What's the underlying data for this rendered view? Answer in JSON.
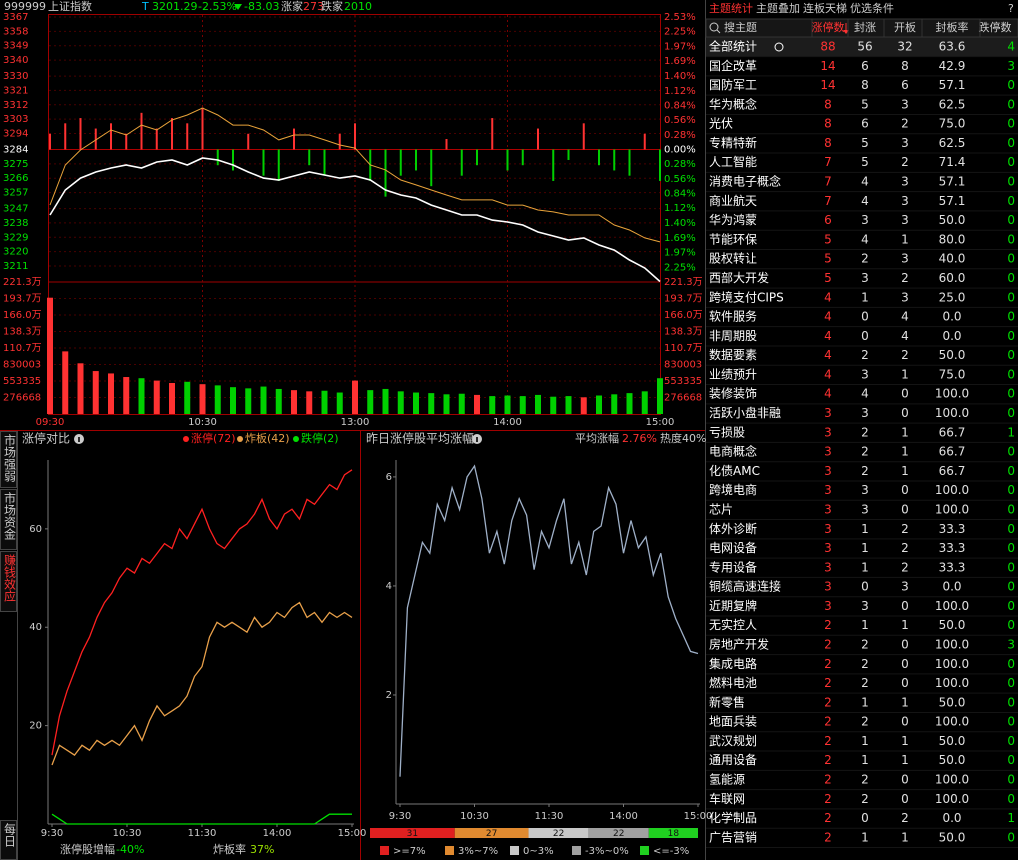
{
  "header": {
    "code": "999999",
    "name": "上证指数",
    "flag": "T",
    "price": 3201.29,
    "change_pct": "-2.53%",
    "change": -83.03,
    "up_label": "涨家",
    "up_count": 273,
    "down_label": "跌家",
    "down_count": 2010
  },
  "index_chart": {
    "type": "line",
    "x": [
      0,
      6,
      12,
      18,
      24,
      30,
      36,
      42,
      48,
      54,
      60,
      66,
      72,
      78,
      84,
      90,
      96,
      102,
      108,
      114,
      120,
      126,
      132,
      138,
      144,
      150,
      156,
      162,
      168,
      174,
      180,
      186,
      192,
      198,
      204,
      210,
      216,
      222,
      228,
      234,
      240
    ],
    "xlim": [
      0,
      240
    ],
    "xticks": [
      {
        "value": 0,
        "label": "09:30"
      },
      {
        "value": 60,
        "label": "10:30"
      },
      {
        "value": 120,
        "label": "13:00"
      },
      {
        "value": 180,
        "label": "14:00"
      },
      {
        "value": 240,
        "label": "15:00"
      }
    ],
    "ylim": [
      3201,
      3367
    ],
    "yticks": [
      3367,
      3358,
      3349,
      3340,
      3330,
      3321,
      3312,
      3303,
      3294,
      3284,
      3275,
      3266,
      3257,
      3247,
      3238,
      3229,
      3220,
      3211
    ],
    "y2lim": [
      -2.53,
      2.53
    ],
    "y2ticks": [
      {
        "value": 2.53,
        "label": "2.53%"
      },
      {
        "value": 2.25,
        "label": "2.25%"
      },
      {
        "value": 1.97,
        "label": "1.97%"
      },
      {
        "value": 1.69,
        "label": "1.69%"
      },
      {
        "value": 1.4,
        "label": "1.40%"
      },
      {
        "value": 1.12,
        "label": "1.12%"
      },
      {
        "value": 0.84,
        "label": "0.84%"
      },
      {
        "value": 0.56,
        "label": "0.56%"
      },
      {
        "value": 0.28,
        "label": "0.28%"
      },
      {
        "value": 0,
        "label": "0.00%"
      },
      {
        "value": -0.28,
        "label": "0.28%"
      },
      {
        "value": -0.56,
        "label": "0.56%"
      },
      {
        "value": -0.84,
        "label": "0.84%"
      },
      {
        "value": -1.12,
        "label": "1.12%"
      },
      {
        "value": -1.4,
        "label": "1.40%"
      },
      {
        "value": -1.69,
        "label": "1.69%"
      },
      {
        "value": -1.97,
        "label": "1.97%"
      },
      {
        "value": -2.25,
        "label": "2.25%"
      }
    ],
    "series": [
      {
        "color": "#ffffff",
        "values": [
          3243.0,
          3258.6,
          3266.1,
          3269.9,
          3272.4,
          3274.3,
          3272.4,
          3276.2,
          3277.4,
          3274.3,
          3278.7,
          3277.4,
          3274.3,
          3269.9,
          3266.1,
          3264.9,
          3267.4,
          3269.9,
          3268.0,
          3266.1,
          3267.4,
          3264.9,
          3258.6,
          3255.5,
          3253.6,
          3249.2,
          3246.1,
          3243.0,
          3243.0,
          3239.8,
          3238.6,
          3236.7,
          3232.3,
          3229.8,
          3227.3,
          3228.6,
          3224.2,
          3221.0,
          3214.8,
          3209.8,
          3201.3
        ]
      },
      {
        "color": "#e8a33a",
        "values": [
          3249.2,
          3274.3,
          3283.7,
          3290.0,
          3296.2,
          3293.1,
          3299.3,
          3296.2,
          3302.5,
          3305.6,
          3310.0,
          3305.6,
          3299.3,
          3299.3,
          3296.2,
          3290.0,
          3293.1,
          3293.1,
          3290.0,
          3286.8,
          3284.9,
          3274.3,
          3271.2,
          3264.9,
          3261.8,
          3258.6,
          3255.5,
          3252.4,
          3252.4,
          3252.4,
          3249.2,
          3249.2,
          3246.1,
          3244.9,
          3243.0,
          3243.0,
          3243.0,
          3236.7,
          3233.6,
          3228.6,
          3226.1
        ]
      }
    ],
    "strength": {
      "axis": "y2",
      "up_color": "#ff3232",
      "down_color": "#00d000",
      "values": [
        0.3,
        0.5,
        0.6,
        0.4,
        0.5,
        0.3,
        0.7,
        0.4,
        0.6,
        0.5,
        0.8,
        -0.3,
        -0.4,
        0.3,
        -0.5,
        -0.6,
        0.4,
        -0.3,
        -0.5,
        0.3,
        0.5,
        -0.6,
        -0.9,
        -0.5,
        -0.4,
        -0.7,
        0.2,
        -0.5,
        -0.3,
        0.6,
        -0.4,
        -0.3,
        0.4,
        -0.6,
        -0.2,
        0.5,
        -0.3,
        -0.4,
        -0.5,
        0.3,
        -0.6
      ]
    },
    "volume": {
      "ylim": [
        0,
        2213344
      ],
      "up_color": "#ff3232",
      "down_color": "#00d000",
      "yticks": [
        {
          "value": 2213344,
          "label": "221.3万"
        },
        {
          "value": 1936676,
          "label": "193.7万"
        },
        {
          "value": 1660008,
          "label": "166.0万"
        },
        {
          "value": 1383340,
          "label": "138.3万"
        },
        {
          "value": 1106672,
          "label": "110.7万"
        },
        830003,
        553335,
        276668
      ],
      "values": [
        1950000,
        1050000,
        850000,
        720000,
        680000,
        620000,
        600000,
        560000,
        520000,
        540000,
        500000,
        480000,
        450000,
        430000,
        460000,
        420000,
        400000,
        380000,
        390000,
        360000,
        560000,
        400000,
        420000,
        380000,
        360000,
        350000,
        330000,
        340000,
        320000,
        300000,
        310000,
        300000,
        320000,
        290000,
        300000,
        280000,
        310000,
        330000,
        350000,
        380000,
        600000
      ]
    }
  },
  "side_tabs": {
    "items": [
      "市场强弱",
      "市场资金",
      "赚钱效应",
      "每日"
    ],
    "active": 2
  },
  "limit_chart": {
    "type": "line",
    "title": "涨停对比",
    "x": [
      0,
      6,
      12,
      18,
      24,
      30,
      36,
      42,
      48,
      54,
      60,
      66,
      72,
      78,
      84,
      90,
      96,
      102,
      108,
      114,
      120,
      126,
      132,
      138,
      144,
      150,
      156,
      162,
      168,
      174,
      180,
      186,
      192,
      198,
      204,
      210,
      216,
      222,
      228,
      234,
      240
    ],
    "xlim": [
      0,
      240
    ],
    "xticks": [
      {
        "value": 0,
        "label": "9:30"
      },
      {
        "value": 60,
        "label": "10:30"
      },
      {
        "value": 120,
        "label": "11:30"
      },
      {
        "value": 180,
        "label": "14:00"
      },
      {
        "value": 240,
        "label": "15:00"
      }
    ],
    "ylim": [
      0,
      74
    ],
    "yticks": [
      20,
      40,
      60
    ],
    "series": [
      {
        "name": "涨停(72)",
        "color": "#ff2020",
        "values": [
          14,
          22,
          27,
          31,
          35,
          38,
          42,
          45,
          47,
          50,
          52,
          51,
          54,
          53,
          55,
          57,
          56,
          60,
          58,
          61,
          64,
          60,
          57,
          56,
          58,
          60,
          61,
          63,
          66,
          62,
          60,
          63,
          64,
          62,
          66,
          65,
          67,
          69,
          68,
          71,
          72
        ]
      },
      {
        "name": "炸板(42)",
        "color": "#e8a04a",
        "values": [
          12,
          16,
          15,
          14,
          16,
          15,
          17,
          16,
          17,
          16,
          18,
          20,
          17,
          21,
          24,
          22,
          23,
          24,
          26,
          30,
          32,
          38,
          41,
          40,
          41,
          40,
          39,
          42,
          40,
          41,
          43,
          42,
          44,
          45,
          42,
          43,
          41,
          43,
          42,
          43,
          42
        ]
      },
      {
        "name": "跌停(2)",
        "color": "#00e000",
        "values": [
          2,
          1,
          0,
          0,
          0,
          0,
          0,
          0,
          0,
          0,
          0,
          0,
          0,
          0,
          0,
          0,
          0,
          0,
          0,
          0,
          0,
          0,
          0,
          0,
          0,
          0,
          0,
          0,
          0,
          0,
          0,
          0,
          0,
          0,
          0,
          0,
          1,
          2,
          2,
          2,
          2
        ]
      }
    ],
    "footer": [
      {
        "label": "涨停股增幅",
        "value": "-40%",
        "color": "#00e000"
      },
      {
        "label": "炸板率",
        "value": "37%",
        "color": "#9be000"
      }
    ]
  },
  "avg_chart": {
    "type": "line",
    "title": "昨日涨停股平均涨幅",
    "avg_label": "平均涨幅",
    "avg_value": "2.76%",
    "heat": "热度40%",
    "x": [
      0,
      6,
      12,
      18,
      24,
      30,
      36,
      42,
      48,
      54,
      60,
      66,
      72,
      78,
      84,
      90,
      96,
      102,
      108,
      114,
      120,
      126,
      132,
      138,
      144,
      150,
      156,
      162,
      168,
      174,
      180,
      186,
      192,
      198,
      204,
      210,
      216,
      222,
      228,
      234,
      240
    ],
    "xlim": [
      0,
      240
    ],
    "xticks": [
      {
        "value": 0,
        "label": "9:30"
      },
      {
        "value": 60,
        "label": "10:30"
      },
      {
        "value": 120,
        "label": "11:30"
      },
      {
        "value": 180,
        "label": "14:00"
      },
      {
        "value": 240,
        "label": "15:00"
      }
    ],
    "ylim": [
      0,
      6.31
    ],
    "yticks": [
      2,
      4,
      6
    ],
    "series": [
      {
        "color": "#9fb0c8",
        "values": [
          0.5,
          3.6,
          4.2,
          4.8,
          4.6,
          5.5,
          5.2,
          5.8,
          5.4,
          6.0,
          6.2,
          5.6,
          4.6,
          5.0,
          4.4,
          5.2,
          5.6,
          5.3,
          4.3,
          5.0,
          4.7,
          5.2,
          5.6,
          4.4,
          4.8,
          4.2,
          5.0,
          5.1,
          5.8,
          5.5,
          4.6,
          5.2,
          4.7,
          4.9,
          4.2,
          4.6,
          3.8,
          3.4,
          3.1,
          2.8,
          2.76
        ]
      }
    ],
    "distribution": {
      "values": [
        31,
        27,
        22,
        22,
        18
      ],
      "labels": [
        ">=7%",
        "3%~7%",
        "0~3%",
        "-3%~0%",
        "<=-3%"
      ],
      "colors": [
        "#e02020",
        "#e08a30",
        "#c8c8c8",
        "#a0a0a0",
        "#20d020"
      ]
    }
  },
  "theme_table": {
    "tabs": [
      "主题统计",
      "主题叠加",
      "连板天梯",
      "优选条件",
      "?"
    ],
    "active_tab": 0,
    "search": "搜主题",
    "columns": [
      "涨停数",
      "封涨",
      "开板",
      "封板率",
      "跌停数"
    ],
    "rows": [
      [
        "全部统计",
        88,
        56,
        32,
        "63.6",
        4
      ],
      [
        "国企改革",
        14,
        6,
        8,
        "42.9",
        3
      ],
      [
        "国防军工",
        14,
        8,
        6,
        "57.1",
        0
      ],
      [
        "华为概念",
        8,
        5,
        3,
        "62.5",
        0
      ],
      [
        "光伏",
        8,
        6,
        2,
        "75.0",
        0
      ],
      [
        "专精特新",
        8,
        5,
        3,
        "62.5",
        0
      ],
      [
        "人工智能",
        7,
        5,
        2,
        "71.4",
        0
      ],
      [
        "消费电子概念",
        7,
        4,
        3,
        "57.1",
        0
      ],
      [
        "商业航天",
        7,
        4,
        3,
        "57.1",
        0
      ],
      [
        "华为鸿蒙",
        6,
        3,
        3,
        "50.0",
        0
      ],
      [
        "节能环保",
        5,
        4,
        1,
        "80.0",
        0
      ],
      [
        "股权转让",
        5,
        2,
        3,
        "40.0",
        0
      ],
      [
        "西部大开发",
        5,
        3,
        2,
        "60.0",
        0
      ],
      [
        "跨境支付CIPS",
        4,
        1,
        3,
        "25.0",
        0
      ],
      [
        "软件服务",
        4,
        0,
        4,
        "0.0",
        0
      ],
      [
        "非周期股",
        4,
        0,
        4,
        "0.0",
        0
      ],
      [
        "数据要素",
        4,
        2,
        2,
        "50.0",
        0
      ],
      [
        "业绩预升",
        4,
        3,
        1,
        "75.0",
        0
      ],
      [
        "装修装饰",
        4,
        4,
        0,
        "100.0",
        0
      ],
      [
        "活跃小盘非融",
        3,
        3,
        0,
        "100.0",
        0
      ],
      [
        "亏损股",
        3,
        2,
        1,
        "66.7",
        1
      ],
      [
        "电商概念",
        3,
        2,
        1,
        "66.7",
        0
      ],
      [
        "化债AMC",
        3,
        2,
        1,
        "66.7",
        0
      ],
      [
        "跨境电商",
        3,
        3,
        0,
        "100.0",
        0
      ],
      [
        "芯片",
        3,
        3,
        0,
        "100.0",
        0
      ],
      [
        "体外诊断",
        3,
        1,
        2,
        "33.3",
        0
      ],
      [
        "电网设备",
        3,
        1,
        2,
        "33.3",
        0
      ],
      [
        "专用设备",
        3,
        1,
        2,
        "33.3",
        0
      ],
      [
        "铜缆高速连接",
        3,
        0,
        3,
        "0.0",
        0
      ],
      [
        "近期复牌",
        3,
        3,
        0,
        "100.0",
        0
      ],
      [
        "无实控人",
        2,
        1,
        1,
        "50.0",
        0
      ],
      [
        "房地产开发",
        2,
        2,
        0,
        "100.0",
        3
      ],
      [
        "集成电路",
        2,
        2,
        0,
        "100.0",
        0
      ],
      [
        "燃料电池",
        2,
        2,
        0,
        "100.0",
        0
      ],
      [
        "新零售",
        2,
        1,
        1,
        "50.0",
        0
      ],
      [
        "地面兵装",
        2,
        2,
        0,
        "100.0",
        0
      ],
      [
        "武汉规划",
        2,
        1,
        1,
        "50.0",
        0
      ],
      [
        "通用设备",
        2,
        1,
        1,
        "50.0",
        0
      ],
      [
        "氢能源",
        2,
        2,
        0,
        "100.0",
        0
      ],
      [
        "车联网",
        2,
        2,
        0,
        "100.0",
        0
      ],
      [
        "化学制品",
        2,
        0,
        2,
        "0.0",
        1
      ],
      [
        "广告营销",
        2,
        1,
        1,
        "50.0",
        0
      ]
    ]
  }
}
